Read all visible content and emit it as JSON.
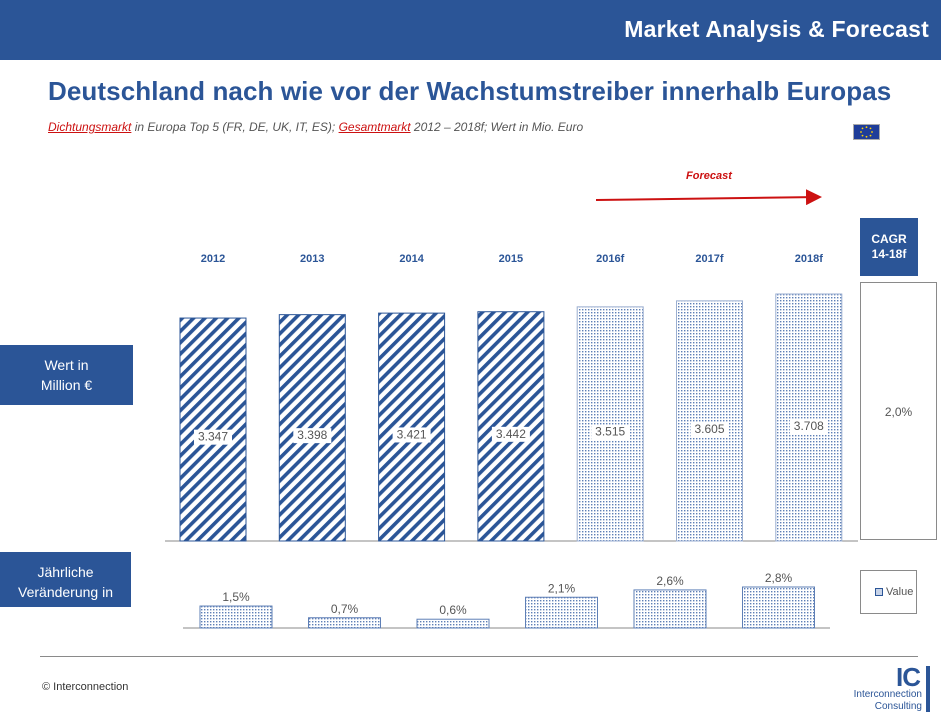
{
  "header": {
    "title": "Market Analysis & Forecast"
  },
  "main_title": "Deutschland nach wie vor der Wachstumstreiber innerhalb Europas",
  "subtitle": {
    "part1": "Dichtungsmarkt",
    "part2": " in Europa Top 5 (FR, DE, UK, IT, ES); ",
    "part3": "Gesamtmarkt",
    "part4": " 2012 – 2018f; Wert in Mio. Euro"
  },
  "forecast_label": "Forecast",
  "side_labels": {
    "value_line1": "Wert in",
    "value_line2": "Million €",
    "change_line1": "Jährliche",
    "change_line2": "Veränderung in",
    "change_line3": "%"
  },
  "cagr": {
    "line1": "CAGR",
    "line2": "14-18f",
    "value": "2,0%"
  },
  "legend": {
    "label": "Value"
  },
  "footer": {
    "copyright": "© Interconnection",
    "logo_ic": "IC",
    "logo_line1": "Interconnection",
    "logo_line2": "Consulting"
  },
  "colors": {
    "brand_blue": "#2b5597",
    "forecast_red": "#cc1111",
    "dot_fill": "#c7d3e8"
  },
  "chart_data": [
    {
      "type": "bar",
      "categories": [
        "2012",
        "2013",
        "2014",
        "2015",
        "2016f",
        "2017f",
        "2018f"
      ],
      "values": [
        3347,
        3398,
        3421,
        3442,
        3515,
        3605,
        3708
      ],
      "labels": [
        "3.347",
        "3.398",
        "3.421",
        "3.442",
        "3.515",
        "3.605",
        "3.708"
      ],
      "forecast": [
        false,
        false,
        false,
        false,
        true,
        true,
        true
      ],
      "title": "",
      "ylabel": "Wert in Million €",
      "ylim": [
        0,
        3708
      ],
      "grid": false
    },
    {
      "type": "bar",
      "categories": [
        "2013",
        "2014",
        "2015",
        "2016f",
        "2017f",
        "2018f"
      ],
      "values": [
        1.5,
        0.7,
        0.6,
        2.1,
        2.6,
        2.8
      ],
      "labels": [
        "1,5%",
        "0,7%",
        "0,6%",
        "2,1%",
        "2,6%",
        "2,8%"
      ],
      "ylabel": "Jährliche Veränderung in %",
      "series": [
        {
          "name": "Value",
          "values": [
            1.5,
            0.7,
            0.6,
            2.1,
            2.6,
            2.8
          ]
        }
      ],
      "ylim": [
        0,
        2.8
      ],
      "grid": false
    }
  ]
}
